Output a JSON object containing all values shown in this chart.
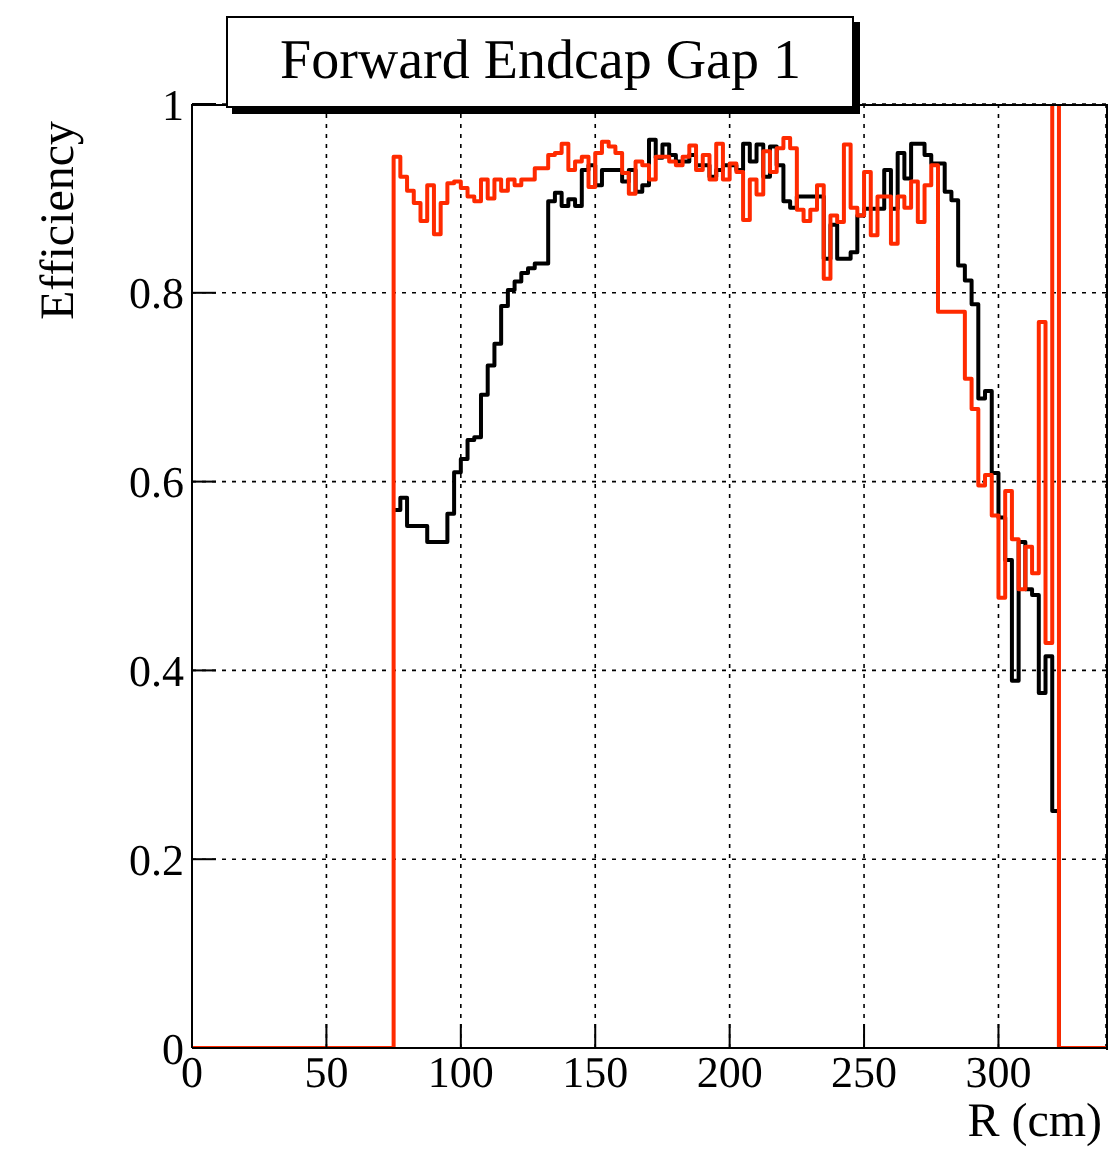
{
  "chart_data": {
    "type": "step",
    "title": "Forward Endcap Gap 1",
    "xlabel": "R (cm)",
    "ylabel": "Efficiency",
    "xlim": [
      0,
      340
    ],
    "xticks": [
      0,
      50,
      100,
      150,
      200,
      250,
      300
    ],
    "ylim": [
      0,
      1
    ],
    "yticks": [
      0,
      0.2,
      0.4,
      0.6,
      0.8,
      1
    ],
    "grid": true,
    "legend": false,
    "line_style": "solid",
    "marker": "none",
    "series": [
      {
        "color": "#000000",
        "x": [
          75,
          77.5,
          80,
          82.5,
          85,
          87.5,
          90,
          92.5,
          95,
          97.5,
          100,
          102.5,
          105,
          107.5,
          110,
          112.5,
          115,
          117.5,
          120,
          122.5,
          125,
          127.5,
          130,
          132.5,
          135,
          137.5,
          140,
          142.5,
          145,
          147.5,
          150,
          152.5,
          155,
          157.5,
          160,
          162.5,
          165,
          167.5,
          170,
          172.5,
          175,
          177.5,
          180,
          182.5,
          185,
          187.5,
          190,
          192.5,
          195,
          197.5,
          200,
          202.5,
          205,
          207.5,
          210,
          212.5,
          215,
          217.5,
          220,
          222.5,
          225,
          227.5,
          230,
          232.5,
          235,
          237.5,
          240,
          242.5,
          245,
          247.5,
          250,
          252.5,
          255,
          257.5,
          260,
          262.5,
          265,
          267.5,
          270,
          272.5,
          275,
          277.5,
          280,
          282.5,
          285,
          287.5,
          290,
          292.5,
          295,
          297.5,
          300,
          302.5,
          305,
          307.5,
          310,
          312.5,
          315,
          317.5,
          320,
          322.5
        ],
        "values": [
          0.57,
          0.583,
          0.553,
          0.553,
          0.553,
          0.536,
          0.536,
          0.536,
          0.566,
          0.61,
          0.624,
          0.644,
          0.647,
          0.692,
          0.723,
          0.746,
          0.786,
          0.803,
          0.812,
          0.821,
          0.826,
          0.831,
          0.831,
          0.897,
          0.906,
          0.892,
          0.899,
          0.892,
          0.93,
          0.935,
          0.914,
          0.93,
          0.93,
          0.93,
          0.918,
          0.93,
          0.907,
          0.914,
          0.962,
          0.943,
          0.957,
          0.946,
          0.939,
          0.939,
          0.946,
          0.935,
          0.935,
          0.923,
          0.93,
          0.935,
          0.935,
          0.93,
          0.958,
          0.939,
          0.957,
          0.923,
          0.955,
          0.935,
          0.897,
          0.89,
          0.902,
          0.902,
          0.902,
          0.902,
          0.836,
          0.872,
          0.836,
          0.836,
          0.843,
          0.882,
          0.889,
          0.889,
          0.889,
          0.93,
          0.889,
          0.948,
          0.921,
          0.958,
          0.958,
          0.946,
          0.937,
          0.937,
          0.907,
          0.898,
          0.829,
          0.813,
          0.788,
          0.688,
          0.696,
          0.609,
          0.562,
          0.517,
          0.389,
          0.536,
          0.486,
          0.48,
          0.376,
          0.415,
          0.251,
          0
        ]
      },
      {
        "color": "#ff2a00",
        "x": [
          0,
          75,
          77.5,
          80,
          82.5,
          85,
          87.5,
          90,
          92.5,
          95,
          97.5,
          100,
          102.5,
          105,
          107.5,
          110,
          112.5,
          115,
          117.5,
          120,
          122.5,
          125,
          127.5,
          130,
          132.5,
          135,
          137.5,
          140,
          142.5,
          145,
          147.5,
          150,
          152.5,
          155,
          157.5,
          160,
          162.5,
          165,
          167.5,
          170,
          172.5,
          175,
          177.5,
          180,
          182.5,
          185,
          187.5,
          190,
          192.5,
          195,
          197.5,
          200,
          202.5,
          205,
          207.5,
          210,
          212.5,
          215,
          217.5,
          220,
          222.5,
          225,
          227.5,
          230,
          232.5,
          235,
          237.5,
          240,
          242.5,
          245,
          247.5,
          250,
          252.5,
          255,
          257.5,
          260,
          262.5,
          265,
          267.5,
          270,
          272.5,
          275,
          277.5,
          280,
          282.5,
          285,
          287.5,
          290,
          292.5,
          295,
          297.5,
          300,
          302.5,
          305,
          307.5,
          310,
          312.5,
          315,
          317.5,
          320,
          322.5,
          340
        ],
        "values": [
          0,
          0.944,
          0.923,
          0.908,
          0.895,
          0.876,
          0.914,
          0.862,
          0.895,
          0.916,
          0.918,
          0.911,
          0.902,
          0.897,
          0.92,
          0.9,
          0.92,
          0.908,
          0.92,
          0.914,
          0.92,
          0.92,
          0.932,
          0.932,
          0.946,
          0.948,
          0.958,
          0.93,
          0.939,
          0.944,
          0.912,
          0.948,
          0.96,
          0.955,
          0.948,
          0.927,
          0.905,
          0.939,
          0.935,
          0.92,
          0.944,
          0.944,
          0.939,
          0.935,
          0.944,
          0.956,
          0.93,
          0.946,
          0.92,
          0.958,
          0.92,
          0.937,
          0.928,
          0.877,
          0.92,
          0.904,
          0.95,
          0.928,
          0.953,
          0.964,
          0.953,
          0.888,
          0.876,
          0.888,
          0.914,
          0.815,
          0.882,
          0.875,
          0.957,
          0.89,
          0.882,
          0.928,
          0.861,
          0.902,
          0.902,
          0.852,
          0.902,
          0.89,
          0.918,
          0.875,
          0.914,
          0.935,
          0.78,
          0.78,
          0.78,
          0.78,
          0.709,
          0.677,
          0.596,
          0.607,
          0.564,
          0.477,
          0.59,
          0.539,
          0.486,
          0.531,
          0.503,
          0.769,
          0.429,
          1.0,
          0,
          0
        ]
      }
    ]
  }
}
